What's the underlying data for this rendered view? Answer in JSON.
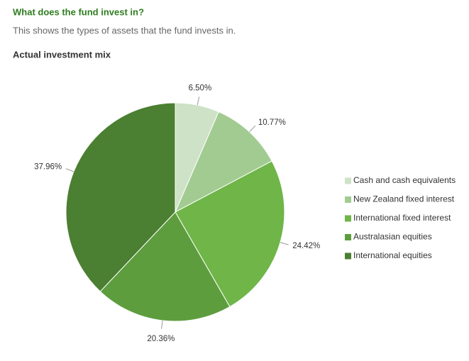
{
  "header": {
    "title": "What does the fund invest in?",
    "subtitle": "This shows the types of assets that the fund invests in."
  },
  "chart_data": {
    "type": "pie",
    "title": "Actual investment mix",
    "categories": [
      "Cash and cash equivalents",
      "New Zealand fixed interest",
      "International fixed interest",
      "Australasian equities",
      "International equities"
    ],
    "values": [
      6.5,
      10.77,
      24.42,
      20.36,
      37.96
    ],
    "value_labels": [
      "6.50%",
      "10.77%",
      "24.42%",
      "20.36%",
      "37.96%"
    ],
    "colors": [
      "#cde2c6",
      "#a2cb91",
      "#6fb548",
      "#5d9d3e",
      "#4b7f31"
    ],
    "legend": "right"
  }
}
